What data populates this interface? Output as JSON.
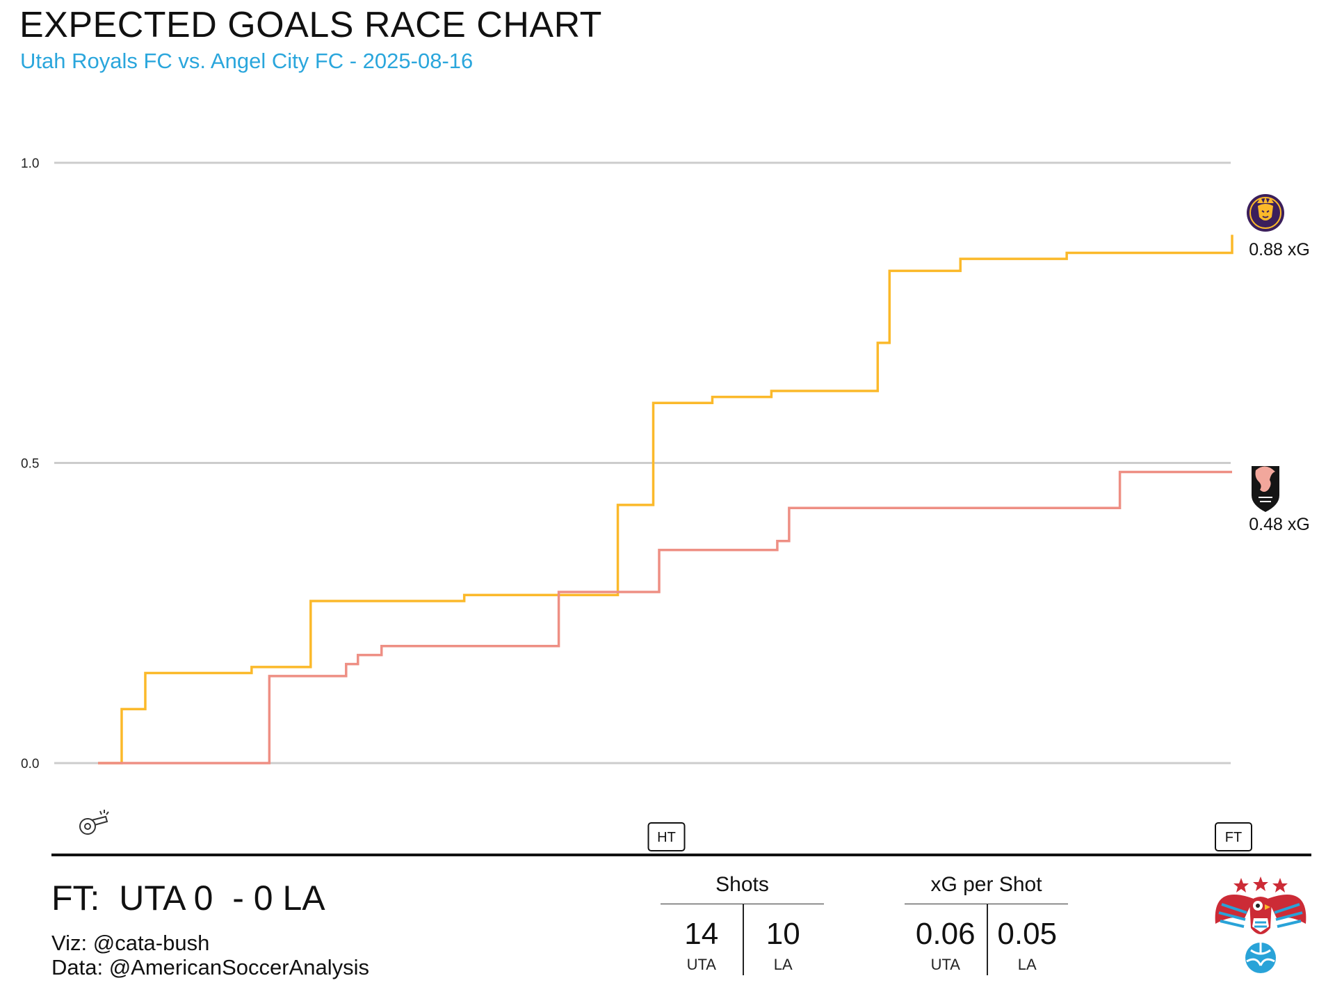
{
  "header": {
    "title": "EXPECTED GOALS RACE CHART",
    "subtitle": "Utah Royals FC vs. Angel City FC - 2025-08-16"
  },
  "chart_data": {
    "type": "line",
    "step": true,
    "xlabel": "",
    "ylabel": "",
    "ylim": [
      0,
      1
    ],
    "yticks": [
      "0.0",
      "0.5",
      "1.0"
    ],
    "grid": true,
    "xlim": [
      0,
      97
    ],
    "markers": [
      {
        "label": "HT",
        "minute": 48
      },
      {
        "label": "FT",
        "minute": 96
      }
    ],
    "series": [
      {
        "team": "UTA",
        "color": "#fbb92a",
        "end_label": "0.88 xG",
        "minutes": [
          0,
          2,
          4,
          13,
          18,
          31,
          44,
          47,
          52,
          52.5,
          57,
          66,
          67,
          73,
          82,
          83,
          96
        ],
        "xg": [
          0,
          0.09,
          0.15,
          0.16,
          0.27,
          0.28,
          0.43,
          0.6,
          0.61,
          0.61,
          0.62,
          0.7,
          0.82,
          0.84,
          0.85,
          0.85,
          0.88
        ]
      },
      {
        "team": "LA",
        "color": "#ee8f84",
        "end_label": "0.48 xG",
        "minutes": [
          0,
          14.5,
          21,
          22,
          24,
          39,
          47.5,
          57.5,
          58.5,
          86.5,
          96
        ],
        "xg": [
          0,
          0.145,
          0.165,
          0.18,
          0.195,
          0.285,
          0.355,
          0.37,
          0.425,
          0.485,
          0.485
        ]
      }
    ]
  },
  "footer": {
    "score": "FT:  UTA 0  - 0 LA",
    "viz_credit": "Viz: @cata-bush",
    "data_credit": "Data: @AmericanSoccerAnalysis"
  },
  "stats": {
    "shots": {
      "title": "Shots",
      "home_value": "14",
      "away_value": "10",
      "home_label": "UTA",
      "away_label": "LA"
    },
    "xg_per_shot": {
      "title": "xG per Shot",
      "home_value": "0.06",
      "away_value": "0.05",
      "home_label": "UTA",
      "away_label": "LA"
    }
  },
  "icons": {
    "kickoff": "whistle-icon",
    "home_crest": "utah-royals-crest-icon",
    "away_crest": "angel-city-crest-icon",
    "brand_logo": "eagle-soccer-logo"
  },
  "colors": {
    "subtitle": "#2aa6dc",
    "utah_gold": "#fbb92a",
    "utah_purple": "#3b1f5c",
    "angel_pink": "#ee8f84",
    "grid": "#cccccc",
    "logo_red": "#cc2b36",
    "logo_blue": "#29a3d8"
  }
}
